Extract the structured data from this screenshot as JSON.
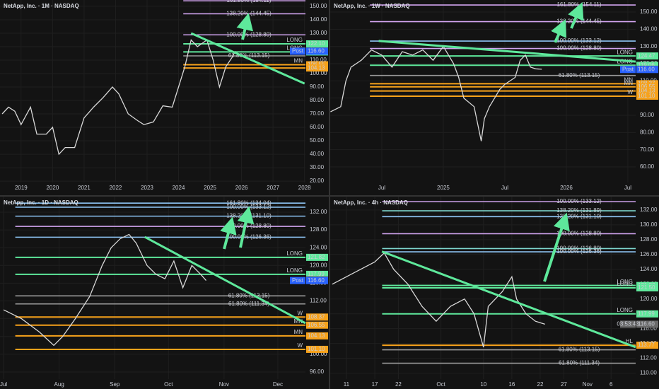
{
  "chart_data": [
    {
      "type": "line",
      "title": "NetApp, Inc. · 1M · NASDAQ",
      "color": "#d8d8d8",
      "x": [
        2018.4,
        2018.6,
        2018.8,
        2019.0,
        2019.3,
        2019.5,
        2019.8,
        2020.0,
        2020.2,
        2020.4,
        2020.7,
        2021.0,
        2021.3,
        2021.6,
        2021.9,
        2022.1,
        2022.4,
        2022.7,
        2022.9,
        2023.2,
        2023.5,
        2023.8,
        2024.0,
        2024.2,
        2024.4,
        2024.6,
        2024.9,
        2025.1,
        2025.3,
        2025.5,
        2025.7,
        2025.8
      ],
      "values": [
        70,
        75,
        72,
        62,
        75,
        55,
        55,
        60,
        40,
        45,
        45,
        67,
        75,
        82,
        90,
        85,
        70,
        65,
        62,
        64,
        76,
        75,
        90,
        105,
        125,
        120,
        125,
        110,
        90,
        105,
        112,
        116.6
      ],
      "xlim": [
        2018.33,
        2028.03
      ],
      "xticks": [
        2019,
        2020,
        2021,
        2022,
        2023,
        2024,
        2025,
        2026,
        2027,
        2028
      ],
      "ylim": [
        19,
        154.7
      ],
      "yticks": [
        {
          "value": 20,
          "label": "20.00"
        },
        {
          "value": 30,
          "label": "30.00"
        },
        {
          "value": 40,
          "label": "40.00"
        },
        {
          "value": 50,
          "label": "50.00"
        },
        {
          "value": 60,
          "label": "60.00"
        },
        {
          "value": 70,
          "label": "70.00"
        },
        {
          "value": 80,
          "label": "80.00"
        },
        {
          "value": 90,
          "label": "90.00"
        },
        {
          "value": 100,
          "label": "100.00"
        },
        {
          "value": 110,
          "label": "110.00"
        },
        {
          "value": 120,
          "label": "120.00"
        },
        {
          "value": 130,
          "label": "130.00"
        },
        {
          "value": 140,
          "label": "140.00"
        },
        {
          "value": 150,
          "label": "150.00"
        }
      ],
      "trendline": {
        "x": [
          2024.4,
          2028.0
        ],
        "values": [
          130,
          92.6
        ],
        "color": "#5ee89b"
      },
      "levels": [
        {
          "value": 154.11,
          "label": "161.80% (154.11)",
          "color": "#d2a4f0"
        },
        {
          "value": 144.45,
          "label": "138.20% (144.45)",
          "color": "#d2a4f0"
        },
        {
          "value": 128.8,
          "label": "100.00% (128.80)",
          "color": "#d2a4f0"
        },
        {
          "value": 122.1,
          "label": "LONG",
          "color": "#5ee89b",
          "tag": "122.10"
        },
        {
          "value": 116.08,
          "label": "LONG",
          "color": "#5ee89b",
          "tag": "116.08"
        },
        {
          "value": 113.15,
          "label": "61.80% (113.15)",
          "color": "#9a9a9a"
        },
        {
          "value": 106.55,
          "label": "MN",
          "color": "#f7a21b",
          "tag": "106.55"
        },
        {
          "value": 104.13,
          "color": "#f7a21b",
          "tag": "104.13"
        }
      ],
      "tags": [
        {
          "value": 116.78,
          "label": "116.78",
          "note": "9d 0h",
          "color": "#6a6a6a"
        },
        {
          "value": 116.6,
          "label": "116.60",
          "note": "Post",
          "color": "#2962ff"
        }
      ]
    },
    {
      "type": "line",
      "title": "NetApp, Inc. · 1W · NASDAQ",
      "color": "#d8d8d8",
      "x": [
        1,
        2,
        2.5,
        3,
        4,
        5,
        6,
        7,
        8,
        9,
        10,
        11,
        12,
        13,
        13.5,
        14,
        15,
        15.7,
        16,
        16.5,
        17,
        17.5,
        18,
        19,
        19.5,
        20,
        20.5,
        21,
        21.6
      ],
      "values": [
        92,
        95,
        110,
        118,
        122,
        128,
        125,
        118,
        127,
        125,
        128,
        122,
        130,
        120,
        112,
        100,
        95,
        75,
        88,
        95,
        100,
        105,
        108,
        112,
        122,
        125,
        118,
        117,
        116.78
      ],
      "xlim": [
        0.97,
        30.76
      ],
      "xticks": [
        {
          "value": 6,
          "label": "Jul"
        },
        {
          "value": 12,
          "label": "2025"
        },
        {
          "value": 18,
          "label": "Jul"
        },
        {
          "value": 24,
          "label": "2026"
        },
        {
          "value": 30,
          "label": "Jul"
        }
      ],
      "ylim": [
        50.96,
        157
      ],
      "yticks": [
        {
          "value": 60,
          "label": "60.00"
        },
        {
          "value": 70,
          "label": "70.00"
        },
        {
          "value": 80,
          "label": "80.00"
        },
        {
          "value": 90,
          "label": "90.00"
        },
        {
          "value": 100,
          "label": "100.00"
        },
        {
          "value": 110,
          "label": "110.00"
        },
        {
          "value": 120,
          "label": "120.00"
        },
        {
          "value": 130,
          "label": "130.00"
        },
        {
          "value": 140,
          "label": "140.00"
        },
        {
          "value": 150,
          "label": "150.00"
        }
      ],
      "trendline": {
        "x": [
          5.7,
          30.76
        ],
        "values": [
          133.2,
          121.2
        ],
        "color": "#5ee89b"
      },
      "levels": [
        {
          "value": 154.11,
          "label": "161.80% (154.11)",
          "color": "#d2a4f0"
        },
        {
          "value": 144.45,
          "label": "138.20% (144.45)",
          "color": "#d2a4f0"
        },
        {
          "value": 133.12,
          "label": "100.00% (133.12)",
          "color": "#8ec5f5"
        },
        {
          "value": 128.8,
          "label": "100.00% (128.80)",
          "color": "#d2a4f0"
        },
        {
          "value": 124.47,
          "label": "LONG",
          "color": "#5ee89b",
          "tag": "124.47"
        },
        {
          "value": 119.06,
          "label": "LONG",
          "color": "#5ee89b",
          "tag": "119.06"
        },
        {
          "value": 113.15,
          "label": "61.80% (113.15)",
          "color": "#9a9a9a"
        },
        {
          "value": 108.37,
          "label": "MN",
          "color": "#f7a21b",
          "tag": "108.37"
        },
        {
          "value": 106.55,
          "label": "MN",
          "color": "#f7a21b",
          "tag": "106.55"
        },
        {
          "value": 104.13,
          "color": "#f7a21b",
          "tag": "104.13"
        },
        {
          "value": 101.1,
          "label": "W",
          "color": "#f7a21b",
          "tag": "101.10"
        }
      ],
      "tags": [
        {
          "value": 116.78,
          "label": "116.78",
          "note": "2d 0h",
          "color": "#6a6a6a"
        },
        {
          "value": 116.6,
          "label": "116.60",
          "note": "Post",
          "color": "#2962ff"
        }
      ]
    },
    {
      "type": "line",
      "title": "NetApp, Inc. · 1D · NASDAQ",
      "color": "#d8d8d8",
      "x": [
        0,
        10,
        20,
        28,
        33,
        40,
        48,
        55,
        60,
        65,
        70,
        74,
        80,
        85,
        90,
        95,
        100,
        105,
        110,
        113
      ],
      "values": [
        110,
        108,
        105,
        102,
        104,
        108,
        113,
        120,
        124,
        126,
        127,
        125,
        120,
        118,
        117,
        121,
        115,
        120,
        118,
        116.6
      ],
      "xlim": [
        -2,
        168.4
      ],
      "xticks": [
        {
          "value": 0,
          "label": "Jul"
        },
        {
          "value": 31,
          "label": "Aug"
        },
        {
          "value": 62,
          "label": "Sep"
        },
        {
          "value": 92,
          "label": "Oct"
        },
        {
          "value": 123,
          "label": "Nov"
        },
        {
          "value": 153,
          "label": "Dec"
        }
      ],
      "ylim": [
        94.4,
        135.5
      ],
      "yticks": [
        {
          "value": 96,
          "label": "96.00"
        },
        {
          "value": 100,
          "label": "100.00"
        },
        {
          "value": 104,
          "label": "104.00"
        },
        {
          "value": 108,
          "label": "108.00"
        },
        {
          "value": 112,
          "label": "112.00"
        },
        {
          "value": 116,
          "label": "116.00"
        },
        {
          "value": 120,
          "label": "120.00"
        },
        {
          "value": 124,
          "label": "124.00"
        },
        {
          "value": 128,
          "label": "128.00"
        },
        {
          "value": 132,
          "label": "132.00"
        }
      ],
      "trendline": {
        "x": [
          78.8,
          168.4
        ],
        "values": [
          126.4,
          107
        ],
        "color": "#5ee89b"
      },
      "levels": [
        {
          "value": 134.04,
          "label": "161.80% (134.04)",
          "color": "#8ec5f5"
        },
        {
          "value": 133.12,
          "label": "100.00% (133.12)",
          "color": "#8ec5f5"
        },
        {
          "value": 131.1,
          "label": "138.20% (131.10)",
          "color": "#8ec5f5"
        },
        {
          "value": 128.8,
          "label": "100.00% (128.80)",
          "color": "#d2a4f0"
        },
        {
          "value": 126.36,
          "label": "100.00% (126.36)",
          "color": "#8ec5f5"
        },
        {
          "value": 121.82,
          "label": "LONG",
          "color": "#5ee89b",
          "tag": "121.82"
        },
        {
          "value": 117.99,
          "label": "LONG",
          "color": "#5ee89b",
          "tag": "117.99"
        },
        {
          "value": 113.15,
          "label": "61.80% (113.15)",
          "color": "#9a9a9a"
        },
        {
          "value": 111.34,
          "label": "61.80% (111.34)",
          "color": "#9a9a9a"
        },
        {
          "value": 108.37,
          "label": "W",
          "color": "#f7a21b",
          "tag": "108.37"
        },
        {
          "value": 106.55,
          "label": "MN",
          "color": "#f7a21b",
          "tag": "106.55"
        },
        {
          "value": 104.13,
          "label": "MN",
          "color": "#f7a21b",
          "tag": "104.13"
        },
        {
          "value": 101.1,
          "label": "W",
          "color": "#f7a21b",
          "tag": "101.10"
        }
      ],
      "tags": [
        {
          "value": 116.78,
          "label": "116.78",
          "color": "#6a6a6a"
        },
        {
          "value": 116.6,
          "label": "116.60",
          "note": "Post",
          "color": "#2962ff"
        }
      ]
    },
    {
      "type": "line",
      "title": "NetApp, Inc. · 4h · NASDAQ",
      "color": "#d8d8d8",
      "x": [
        7,
        10,
        13,
        16,
        18,
        20,
        23,
        26,
        29,
        32,
        35,
        37,
        39,
        40,
        43,
        45,
        46,
        48,
        50,
        52
      ],
      "values": [
        122,
        123,
        124,
        125,
        126.2,
        124,
        122,
        119,
        117,
        119,
        120,
        118,
        113.5,
        119,
        121,
        123,
        120,
        118,
        117,
        116.6
      ],
      "xlim": [
        6.57,
        71.2
      ],
      "xticks": [
        {
          "value": 10,
          "label": "11"
        },
        {
          "value": 16,
          "label": "17"
        },
        {
          "value": 21,
          "label": "22"
        },
        {
          "value": 30,
          "label": "Oct"
        },
        {
          "value": 39,
          "label": "10"
        },
        {
          "value": 45,
          "label": "16"
        },
        {
          "value": 51,
          "label": "22"
        },
        {
          "value": 56,
          "label": "27"
        },
        {
          "value": 61,
          "label": "Nov"
        },
        {
          "value": 66,
          "label": "6"
        }
      ],
      "ylim": [
        109.2,
        133.8
      ],
      "yticks": [
        {
          "value": 110,
          "label": "110.00"
        },
        {
          "value": 112,
          "label": "112.00"
        },
        {
          "value": 114,
          "label": "114.00"
        },
        {
          "value": 116,
          "label": "116.00"
        },
        {
          "value": 118,
          "label": "118.00"
        },
        {
          "value": 120,
          "label": "120.00"
        },
        {
          "value": 122,
          "label": "122.00"
        },
        {
          "value": 124,
          "label": "124.00"
        },
        {
          "value": 126,
          "label": "126.00"
        },
        {
          "value": 128,
          "label": "128.00"
        },
        {
          "value": 130,
          "label": "130.00"
        },
        {
          "value": 132,
          "label": "132.00"
        }
      ],
      "trendline": {
        "x": [
          17.5,
          71.2
        ],
        "values": [
          126.4,
          113.5
        ],
        "color": "#5ee89b"
      },
      "levels": [
        {
          "value": 133.12,
          "label": "100.00% (133.12)",
          "color": "#d2a4f0"
        },
        {
          "value": 131.89,
          "label": "138.20% (131.89)",
          "color": "#7fd8d0"
        },
        {
          "value": 131.1,
          "label": "138.20% (131.10)",
          "color": "#8ec5f5"
        },
        {
          "value": 128.8,
          "label": "100.00% (128.80)",
          "color": "#d2a4f0"
        },
        {
          "value": 126.8,
          "label": "100.00% (126.80)",
          "color": "#7fd8d0"
        },
        {
          "value": 126.36,
          "label": "100.00% (126.36)",
          "color": "#8ec5f5"
        },
        {
          "value": 121.82,
          "label": "LONG",
          "color": "#5ee89b",
          "tag": "121.82"
        },
        {
          "value": 121.5,
          "label": "LONG",
          "color": "#5ee89b",
          "tag": "121.50"
        },
        {
          "value": 117.99,
          "label": "LONG",
          "color": "#5ee89b",
          "tag": "117.99"
        },
        {
          "value": 113.77,
          "label": "HL",
          "color": "#f7a21b",
          "tag": "113.77"
        },
        {
          "value": 113.15,
          "label": "61.80% (113.15)",
          "color": "#9a9a9a"
        },
        {
          "value": 111.34,
          "label": "61.80% (111.34)",
          "color": "#9a9a9a"
        }
      ],
      "tags": [
        {
          "value": 116.6,
          "label": "116.60",
          "note": "03:53:43",
          "color": "#6a6a6a"
        }
      ]
    }
  ]
}
